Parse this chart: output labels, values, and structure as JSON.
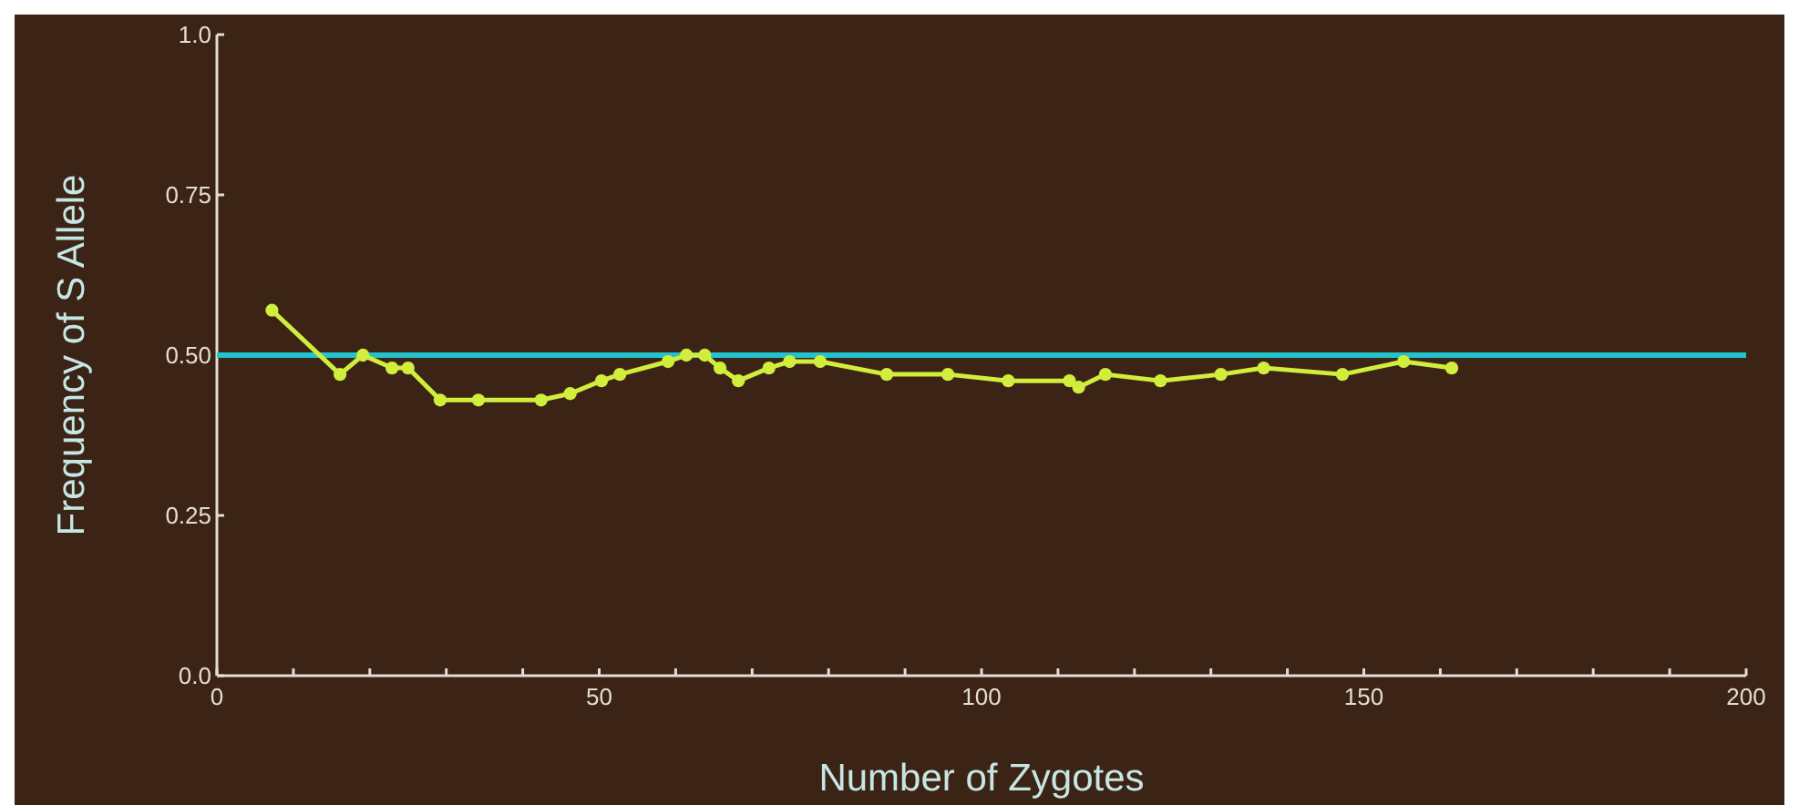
{
  "chart_data": {
    "type": "line",
    "xlabel": "Number of Zygotes",
    "ylabel": "Frequency of S Allele",
    "xlim": [
      0,
      200
    ],
    "ylim": [
      0,
      1
    ],
    "xticks": [
      0,
      {
        "value": 10,
        "label": null
      },
      {
        "value": 20,
        "label": null
      },
      {
        "value": 30,
        "label": null
      },
      {
        "value": 40,
        "label": null
      },
      50,
      {
        "value": 60,
        "label": null
      },
      {
        "value": 70,
        "label": null
      },
      {
        "value": 80,
        "label": null
      },
      {
        "value": 90,
        "label": null
      },
      100,
      {
        "value": 110,
        "label": null
      },
      {
        "value": 120,
        "label": null
      },
      {
        "value": 130,
        "label": null
      },
      {
        "value": 140,
        "label": null
      },
      150,
      {
        "value": 160,
        "label": null
      },
      {
        "value": 170,
        "label": null
      },
      {
        "value": 180,
        "label": null
      },
      {
        "value": 190,
        "label": null
      },
      200
    ],
    "yticks": [
      {
        "value": 0,
        "label": "0.0"
      },
      0.25,
      {
        "value": 0.5,
        "label": "0.50"
      },
      0.75,
      {
        "value": 1,
        "label": "1.0"
      }
    ],
    "grid": false,
    "marker": "circle",
    "line_style": "solid",
    "ref_lines": [
      {
        "axis": "y",
        "value": 0.5,
        "color": "#22c3cc"
      }
    ],
    "series": [
      {
        "color": "#d2ee3c",
        "x": [
          7.2,
          16.1,
          19.1,
          22.9,
          25,
          29.2,
          34.2,
          42.4,
          46.2,
          50.3,
          52.7,
          59,
          61.4,
          63.8,
          65.8,
          68.2,
          72.2,
          74.9,
          78.9,
          87.6,
          95.6,
          103.5,
          111.5,
          112.7,
          116.2,
          123.4,
          131.3,
          136.9,
          147.2,
          155.2,
          161.5
        ],
        "values": [
          0.57,
          0.47,
          0.5,
          0.48,
          0.48,
          0.43,
          0.43,
          0.43,
          0.44,
          0.46,
          0.47,
          0.49,
          0.5,
          0.5,
          0.48,
          0.46,
          0.48,
          0.49,
          0.49,
          0.47,
          0.47,
          0.46,
          0.46,
          0.45,
          0.47,
          0.46,
          0.47,
          0.48,
          0.47,
          0.49,
          0.48
        ]
      }
    ]
  }
}
